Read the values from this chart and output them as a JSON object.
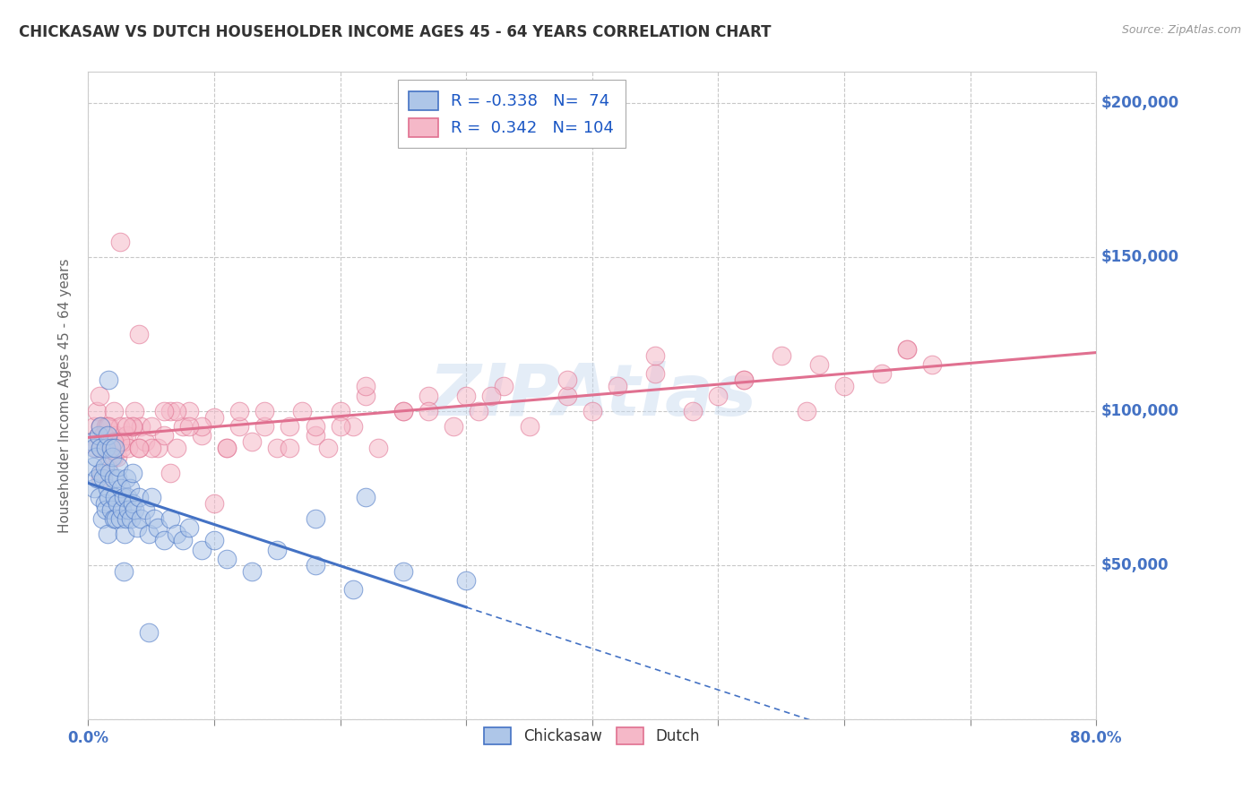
{
  "title": "CHICKASAW VS DUTCH HOUSEHOLDER INCOME AGES 45 - 64 YEARS CORRELATION CHART",
  "source": "Source: ZipAtlas.com",
  "ylabel": "Householder Income Ages 45 - 64 years",
  "xlim": [
    0.0,
    80.0
  ],
  "ylim": [
    0,
    210000
  ],
  "yticks": [
    0,
    50000,
    100000,
    150000,
    200000
  ],
  "ytick_labels": [
    "",
    "$50,000",
    "$100,000",
    "$150,000",
    "$200,000"
  ],
  "xticks": [
    0.0,
    10.0,
    20.0,
    30.0,
    40.0,
    50.0,
    60.0,
    70.0,
    80.0
  ],
  "legend_r_chickasaw": "-0.338",
  "legend_n_chickasaw": "74",
  "legend_r_dutch": "0.342",
  "legend_n_dutch": "104",
  "chickasaw_color": "#aec6e8",
  "dutch_color": "#f5b8c8",
  "trendline_chickasaw_color": "#4472c4",
  "trendline_dutch_color": "#e07090",
  "watermark": "ZIPAtlas",
  "background_color": "#ffffff",
  "grid_color": "#c8c8c8",
  "chickasaw_x": [
    0.3,
    0.4,
    0.5,
    0.5,
    0.6,
    0.7,
    0.8,
    0.9,
    1.0,
    1.0,
    1.0,
    1.1,
    1.2,
    1.3,
    1.3,
    1.4,
    1.4,
    1.5,
    1.5,
    1.5,
    1.6,
    1.7,
    1.8,
    1.8,
    1.9,
    2.0,
    2.0,
    2.1,
    2.1,
    2.2,
    2.3,
    2.3,
    2.4,
    2.5,
    2.6,
    2.7,
    2.8,
    2.9,
    3.0,
    3.0,
    3.1,
    3.2,
    3.3,
    3.4,
    3.5,
    3.7,
    3.9,
    4.0,
    4.2,
    4.5,
    4.8,
    5.0,
    5.2,
    5.5,
    6.0,
    6.5,
    7.0,
    7.5,
    8.0,
    9.0,
    10.0,
    11.0,
    13.0,
    15.0,
    18.0,
    21.0,
    25.0,
    30.0,
    1.6,
    2.8,
    3.5,
    4.8,
    18.0,
    22.0
  ],
  "chickasaw_y": [
    90000,
    82000,
    88000,
    75000,
    85000,
    78000,
    92000,
    72000,
    88000,
    80000,
    95000,
    65000,
    78000,
    82000,
    70000,
    68000,
    88000,
    92000,
    75000,
    60000,
    72000,
    80000,
    68000,
    88000,
    85000,
    65000,
    78000,
    72000,
    88000,
    65000,
    78000,
    70000,
    82000,
    65000,
    75000,
    68000,
    72000,
    60000,
    65000,
    78000,
    72000,
    68000,
    75000,
    65000,
    70000,
    68000,
    62000,
    72000,
    65000,
    68000,
    60000,
    72000,
    65000,
    62000,
    58000,
    65000,
    60000,
    58000,
    62000,
    55000,
    58000,
    52000,
    48000,
    55000,
    50000,
    42000,
    48000,
    45000,
    110000,
    48000,
    80000,
    28000,
    65000,
    72000
  ],
  "dutch_x": [
    0.5,
    0.6,
    0.7,
    0.8,
    0.9,
    1.0,
    1.0,
    1.1,
    1.2,
    1.3,
    1.4,
    1.5,
    1.6,
    1.7,
    1.8,
    1.9,
    2.0,
    2.0,
    2.1,
    2.2,
    2.3,
    2.5,
    2.7,
    2.8,
    3.0,
    3.2,
    3.5,
    3.7,
    4.0,
    4.2,
    4.5,
    5.0,
    5.5,
    6.0,
    6.5,
    7.0,
    7.5,
    8.0,
    9.0,
    10.0,
    11.0,
    12.0,
    13.0,
    14.0,
    15.0,
    16.0,
    17.0,
    18.0,
    19.0,
    20.0,
    21.0,
    22.0,
    23.0,
    25.0,
    27.0,
    29.0,
    31.0,
    33.0,
    35.0,
    38.0,
    40.0,
    42.0,
    45.0,
    48.0,
    50.0,
    52.0,
    55.0,
    57.0,
    60.0,
    63.0,
    65.0,
    67.0,
    1.5,
    2.5,
    3.5,
    5.0,
    7.0,
    9.0,
    12.0,
    16.0,
    20.0,
    25.0,
    30.0,
    1.0,
    2.0,
    3.0,
    4.0,
    6.0,
    8.0,
    11.0,
    14.0,
    18.0,
    22.0,
    27.0,
    32.0,
    38.0,
    45.0,
    52.0,
    58.0,
    65.0,
    2.5,
    4.0,
    6.5,
    10.0
  ],
  "dutch_y": [
    95000,
    88000,
    100000,
    92000,
    105000,
    88000,
    95000,
    80000,
    92000,
    88000,
    95000,
    82000,
    90000,
    95000,
    88000,
    92000,
    85000,
    100000,
    88000,
    92000,
    85000,
    95000,
    88000,
    90000,
    92000,
    88000,
    95000,
    100000,
    88000,
    95000,
    90000,
    95000,
    88000,
    92000,
    100000,
    88000,
    95000,
    100000,
    92000,
    98000,
    88000,
    95000,
    90000,
    95000,
    88000,
    95000,
    100000,
    92000,
    88000,
    100000,
    95000,
    105000,
    88000,
    100000,
    105000,
    95000,
    100000,
    108000,
    95000,
    105000,
    100000,
    108000,
    112000,
    100000,
    105000,
    110000,
    118000,
    100000,
    108000,
    112000,
    120000,
    115000,
    95000,
    90000,
    95000,
    88000,
    100000,
    95000,
    100000,
    88000,
    95000,
    100000,
    105000,
    78000,
    90000,
    95000,
    88000,
    100000,
    95000,
    88000,
    100000,
    95000,
    108000,
    100000,
    105000,
    110000,
    118000,
    110000,
    115000,
    120000,
    155000,
    125000,
    80000,
    70000
  ]
}
